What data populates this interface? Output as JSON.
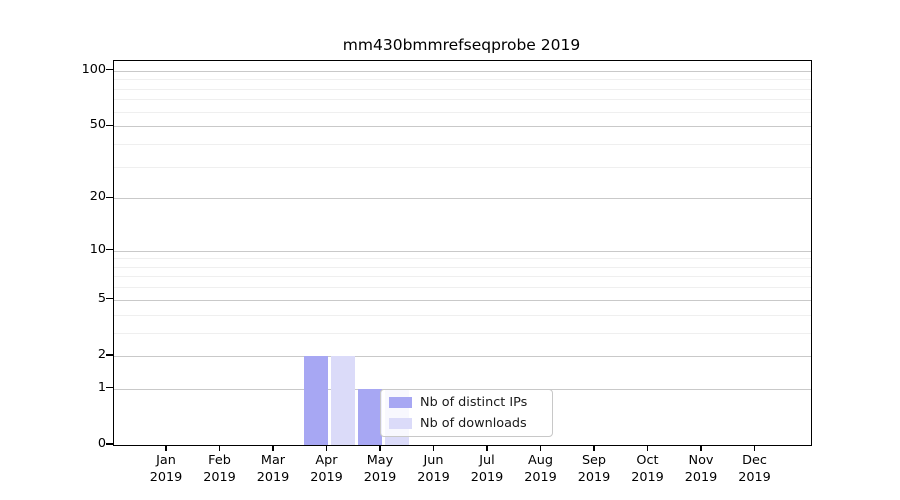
{
  "title": "mm430bmmrefseqprobe 2019",
  "colors": {
    "distinct_ips": "#a7a7f3",
    "downloads": "#dbdbf9",
    "grid_major": "#c9c9c9",
    "grid_minor": "#efefef",
    "spine": "#000000",
    "legend_border": "#c8c8c8",
    "text": "#000000"
  },
  "chart_data": {
    "type": "bar",
    "title": "mm430bmmrefseqprobe 2019",
    "categories": [
      "Jan 2019",
      "Feb 2019",
      "Mar 2019",
      "Apr 2019",
      "May 2019",
      "Jun 2019",
      "Jul 2019",
      "Aug 2019",
      "Sep 2019",
      "Oct 2019",
      "Nov 2019",
      "Dec 2019"
    ],
    "series": [
      {
        "name": "Nb of distinct IPs",
        "values": [
          0,
          0,
          0,
          2,
          1,
          0,
          0,
          0,
          0,
          0,
          0,
          0
        ],
        "color": "#a7a7f3"
      },
      {
        "name": "Nb of downloads",
        "values": [
          0,
          0,
          0,
          2,
          1,
          0,
          0,
          0,
          0,
          0,
          0,
          0
        ],
        "color": "#dbdbf9"
      }
    ],
    "xlabel": "",
    "ylabel": "",
    "y_scale": "log1p",
    "ylim": [
      0,
      113
    ],
    "y_major_ticks": [
      0,
      1,
      2,
      5,
      10,
      20,
      50,
      100
    ],
    "y_minor_gridlines": [
      3,
      4,
      6,
      7,
      8,
      9,
      30,
      40,
      60,
      70,
      80,
      90
    ],
    "grid": true,
    "legend_position": "inside-bottom-center"
  },
  "legend": {
    "items": [
      {
        "label": "Nb of distinct IPs"
      },
      {
        "label": "Nb of downloads"
      }
    ]
  }
}
